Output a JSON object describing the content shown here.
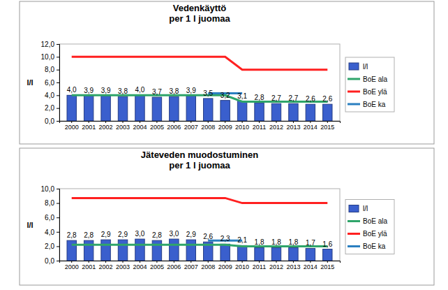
{
  "chart_data": [
    {
      "type": "bar",
      "title": "Vedenkäyttö\nper 1 l juomaa",
      "y_label": "l/l",
      "categories": [
        "2000",
        "2001",
        "2002",
        "2003",
        "2004",
        "2005",
        "2006",
        "2007",
        "2008",
        "2009",
        "2010",
        "2011",
        "2012",
        "2013",
        "2014",
        "2015"
      ],
      "ylim": [
        0,
        12
      ],
      "yticks": [
        {
          "value": 0,
          "label": "0,0"
        },
        {
          "value": 2,
          "label": "2,0"
        },
        {
          "value": 4,
          "label": "4,0"
        },
        {
          "value": 6,
          "label": "6,0"
        },
        {
          "value": 8,
          "label": "8,0"
        },
        {
          "value": 10,
          "label": "10,0"
        },
        {
          "value": 12,
          "label": "12,0"
        }
      ],
      "grid": false,
      "legend": "right",
      "series": [
        {
          "name": "l/l",
          "type": "bar",
          "color": "#3a5fcd",
          "data_labels": true,
          "values": [
            4.0,
            3.9,
            3.9,
            3.8,
            4.0,
            3.7,
            3.8,
            3.9,
            3.5,
            3.2,
            3.1,
            2.8,
            2.7,
            2.7,
            2.6,
            2.6
          ],
          "value_labels": [
            "4,0",
            "3,9",
            "3,9",
            "3,8",
            "4,0",
            "3,7",
            "3,8",
            "3,9",
            "3,5",
            "3,2",
            "3,1",
            "2,8",
            "2,7",
            "2,7",
            "2,6",
            "2,6"
          ]
        },
        {
          "name": "BoE ala",
          "type": "line",
          "color": "#2fa56a",
          "values": [
            4,
            4,
            4,
            4,
            4,
            4,
            4,
            4,
            4,
            4,
            3,
            3,
            3,
            3,
            3,
            3
          ]
        },
        {
          "name": "BoE ylä",
          "type": "line",
          "color": "#ff2020",
          "values": [
            10,
            10,
            10,
            10,
            10,
            10,
            10,
            10,
            10,
            10,
            8,
            8,
            8,
            8,
            8,
            8
          ]
        },
        {
          "name": "BoE ka",
          "type": "line",
          "color": "#2a7fc0",
          "values": [
            null,
            null,
            null,
            null,
            null,
            null,
            null,
            null,
            4.3,
            4.3,
            4.3,
            null,
            null,
            null,
            null,
            null
          ]
        }
      ]
    },
    {
      "type": "bar",
      "title": "Jäteveden muodostuminen\nper 1 l juomaa",
      "y_label": "l/l",
      "categories": [
        "2000",
        "2001",
        "2002",
        "2003",
        "2004",
        "2005",
        "2006",
        "2007",
        "2008",
        "2009",
        "2010",
        "2011",
        "2012",
        "2013",
        "2014",
        "2015"
      ],
      "ylim": [
        0,
        10
      ],
      "yticks": [
        {
          "value": 0,
          "label": "0,0"
        },
        {
          "value": 2,
          "label": "2,0"
        },
        {
          "value": 4,
          "label": "4,0"
        },
        {
          "value": 6,
          "label": "6,0"
        },
        {
          "value": 8,
          "label": "8,0"
        },
        {
          "value": 10,
          "label": "10,0"
        }
      ],
      "grid": false,
      "legend": "right",
      "series": [
        {
          "name": "l/l",
          "type": "bar",
          "color": "#3a5fcd",
          "data_labels": true,
          "values": [
            2.8,
            2.8,
            2.9,
            2.9,
            3.0,
            2.8,
            3.0,
            2.9,
            2.6,
            2.3,
            2.1,
            1.8,
            1.8,
            1.8,
            1.7,
            1.6
          ],
          "value_labels": [
            "2,8",
            "2,8",
            "2,9",
            "2,9",
            "3,0",
            "2,8",
            "3,0",
            "2,9",
            "2,6",
            "2,3",
            "2,1",
            "1,8",
            "1,8",
            "1,8",
            "1,7",
            "1,6"
          ]
        },
        {
          "name": "BoE ala",
          "type": "line",
          "color": "#2fa56a",
          "values": [
            2.2,
            2.2,
            2.2,
            2.2,
            2.2,
            2.2,
            2.2,
            2.2,
            2.2,
            2.2,
            2.0,
            2.0,
            2.0,
            2.0,
            2.0,
            2.0
          ]
        },
        {
          "name": "BoE ylä",
          "type": "line",
          "color": "#ff2020",
          "values": [
            8.7,
            8.7,
            8.7,
            8.7,
            8.7,
            8.7,
            8.7,
            8.7,
            8.7,
            8.7,
            8.0,
            8.0,
            8.0,
            8.0,
            8.0,
            8.0
          ]
        },
        {
          "name": "BoE ka",
          "type": "line",
          "color": "#2a7fc0",
          "values": [
            null,
            null,
            null,
            null,
            null,
            null,
            null,
            null,
            2.8,
            2.8,
            2.8,
            null,
            null,
            null,
            null,
            null
          ]
        }
      ]
    }
  ]
}
